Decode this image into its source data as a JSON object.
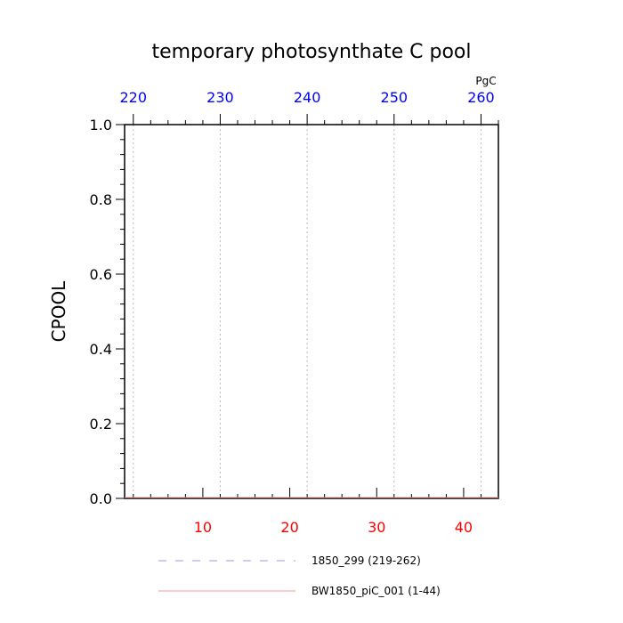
{
  "chart_data": {
    "type": "line",
    "title": "temporary photosynthate C pool",
    "ylabel": "CPOOL",
    "ylim": [
      0.0,
      1.0
    ],
    "yticks": [
      "0.0",
      "0.2",
      "0.4",
      "0.6",
      "0.8",
      "1.0"
    ],
    "x_bottom": {
      "range": [
        1,
        44
      ],
      "ticks": [
        10,
        20,
        30,
        40
      ],
      "color": "#ff0000"
    },
    "x_top": {
      "range": [
        219,
        262
      ],
      "ticks": [
        220,
        230,
        240,
        250,
        260
      ],
      "color": "#0000ff",
      "unit": "PgC"
    },
    "grid": "vertical dotted at top ticks",
    "series": [
      {
        "name": "1850_299 (219-262)",
        "style": "dashed",
        "color": "#9999ee",
        "values": []
      },
      {
        "name": "BW1850_piC_001 (1-44)",
        "style": "solid",
        "color": "#ff9999",
        "values": []
      }
    ],
    "legend_placement": "bottom"
  }
}
